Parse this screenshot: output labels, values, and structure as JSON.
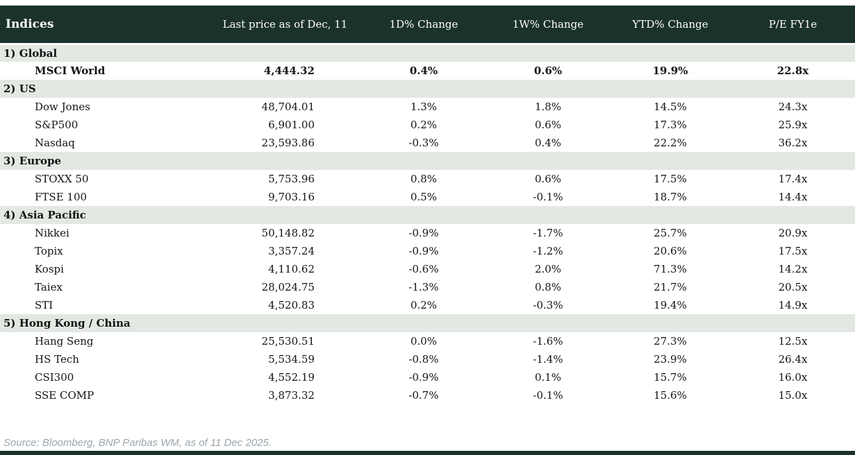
{
  "table": {
    "columns": [
      "Indices",
      "Last price as of Dec, 11",
      "1D% Change",
      "1W% Change",
      "YTD% Change",
      "P/E FY1e"
    ],
    "sections": [
      {
        "label": "1) Global",
        "rows": [
          {
            "name": "MSCI World",
            "price": "4,444.32",
            "d1": "0.4%",
            "d1c": "pos",
            "w1": "0.6%",
            "w1c": "pos",
            "ytd": "19.9%",
            "ytdc": "pos",
            "pe": "22.8x",
            "bold": true
          }
        ]
      },
      {
        "label": "2) US",
        "rows": [
          {
            "name": "Dow Jones",
            "price": "48,704.01",
            "d1": "1.3%",
            "d1c": "pos",
            "w1": "1.8%",
            "w1c": "pos",
            "ytd": "14.5%",
            "ytdc": "pos",
            "pe": "24.3x"
          },
          {
            "name": "S&P500",
            "price": "6,901.00",
            "d1": "0.2%",
            "d1c": "pos",
            "w1": "0.6%",
            "w1c": "pos",
            "ytd": "17.3%",
            "ytdc": "pos",
            "pe": "25.9x"
          },
          {
            "name": "Nasdaq",
            "price": "23,593.86",
            "d1": "-0.3%",
            "d1c": "neg",
            "w1": "0.4%",
            "w1c": "pos",
            "ytd": "22.2%",
            "ytdc": "pos",
            "pe": "36.2x"
          }
        ]
      },
      {
        "label": "3) Europe",
        "rows": [
          {
            "name": "STOXX 50",
            "price": "5,753.96",
            "d1": "0.8%",
            "d1c": "pos",
            "w1": "0.6%",
            "w1c": "pos",
            "ytd": "17.5%",
            "ytdc": "pos",
            "pe": "17.4x"
          },
          {
            "name": "FTSE 100",
            "price": "9,703.16",
            "d1": "0.5%",
            "d1c": "pos",
            "w1": "-0.1%",
            "w1c": "neg",
            "ytd": "18.7%",
            "ytdc": "pos",
            "pe": "14.4x"
          }
        ]
      },
      {
        "label": "4) Asia Pacific",
        "rows": [
          {
            "name": "Nikkei",
            "price": "50,148.82",
            "d1": "-0.9%",
            "d1c": "neg",
            "w1": "-1.7%",
            "w1c": "neg",
            "ytd": "25.7%",
            "ytdc": "pos",
            "pe": "20.9x"
          },
          {
            "name": "Topix",
            "price": "3,357.24",
            "d1": "-0.9%",
            "d1c": "neg",
            "w1": "-1.2%",
            "w1c": "neg",
            "ytd": "20.6%",
            "ytdc": "pos",
            "pe": "17.5x"
          },
          {
            "name": "Kospi",
            "price": "4,110.62",
            "d1": "-0.6%",
            "d1c": "neg",
            "w1": "2.0%",
            "w1c": "pos",
            "ytd": "71.3%",
            "ytdc": "pos",
            "pe": "14.2x"
          },
          {
            "name": "Taiex",
            "price": "28,024.75",
            "d1": "-1.3%",
            "d1c": "neg",
            "w1": "0.8%",
            "w1c": "pos",
            "ytd": "21.7%",
            "ytdc": "pos",
            "pe": "20.5x"
          },
          {
            "name": "STI",
            "price": "4,520.83",
            "d1": "0.2%",
            "d1c": "pos",
            "w1": "-0.3%",
            "w1c": "neg",
            "ytd": "19.4%",
            "ytdc": "pos",
            "pe": "14.9x"
          }
        ]
      },
      {
        "label": "5) Hong Kong / China",
        "rows": [
          {
            "name": "Hang Seng",
            "price": "25,530.51",
            "d1": "0.0%",
            "d1c": "neg",
            "w1": "-1.6%",
            "w1c": "neg",
            "ytd": "27.3%",
            "ytdc": "pos",
            "pe": "12.5x"
          },
          {
            "name": "HS Tech",
            "price": "5,534.59",
            "d1": "-0.8%",
            "d1c": "neg",
            "w1": "-1.4%",
            "w1c": "neg",
            "ytd": "23.9%",
            "ytdc": "pos",
            "pe": "26.4x"
          },
          {
            "name": "CSI300",
            "price": "4,552.19",
            "d1": "-0.9%",
            "d1c": "neg",
            "w1": "0.1%",
            "w1c": "pos",
            "ytd": "15.7%",
            "ytdc": "pos",
            "pe": "16.0x"
          },
          {
            "name": "SSE COMP",
            "price": "3,873.32",
            "d1": "-0.7%",
            "d1c": "neg",
            "w1": "-0.1%",
            "w1c": "neg",
            "ytd": "15.6%",
            "ytdc": "pos",
            "pe": "15.0x"
          }
        ]
      }
    ]
  },
  "footer": {
    "source": "Source: Bloomberg, BNP Paribas WM, as of 11 Dec 2025."
  },
  "colors": {
    "header_bg": "#1b322c",
    "section_bg": "#e3e8e3",
    "positive": "#0d8a3e",
    "negative": "#c9252b",
    "source_text": "#9aa5ad"
  },
  "chart_data": {
    "type": "table",
    "title": "Indices",
    "columns": [
      "Indices",
      "Last price as of Dec, 11",
      "1D% Change",
      "1W% Change",
      "YTD% Change",
      "P/E FY1e"
    ],
    "rows": [
      [
        "1) Global",
        "",
        "",
        "",
        "",
        ""
      ],
      [
        "MSCI World",
        "4,444.32",
        "0.4%",
        "0.6%",
        "19.9%",
        "22.8x"
      ],
      [
        "2) US",
        "",
        "",
        "",
        "",
        ""
      ],
      [
        "Dow Jones",
        "48,704.01",
        "1.3%",
        "1.8%",
        "14.5%",
        "24.3x"
      ],
      [
        "S&P500",
        "6,901.00",
        "0.2%",
        "0.6%",
        "17.3%",
        "25.9x"
      ],
      [
        "Nasdaq",
        "23,593.86",
        "-0.3%",
        "0.4%",
        "22.2%",
        "36.2x"
      ],
      [
        "3) Europe",
        "",
        "",
        "",
        "",
        ""
      ],
      [
        "STOXX 50",
        "5,753.96",
        "0.8%",
        "0.6%",
        "17.5%",
        "17.4x"
      ],
      [
        "FTSE 100",
        "9,703.16",
        "0.5%",
        "-0.1%",
        "18.7%",
        "14.4x"
      ],
      [
        "4) Asia Pacific",
        "",
        "",
        "",
        "",
        ""
      ],
      [
        "Nikkei",
        "50,148.82",
        "-0.9%",
        "-1.7%",
        "25.7%",
        "20.9x"
      ],
      [
        "Topix",
        "3,357.24",
        "-0.9%",
        "-1.2%",
        "20.6%",
        "17.5x"
      ],
      [
        "Kospi",
        "4,110.62",
        "-0.6%",
        "2.0%",
        "71.3%",
        "14.2x"
      ],
      [
        "Taiex",
        "28,024.75",
        "-1.3%",
        "0.8%",
        "21.7%",
        "20.5x"
      ],
      [
        "STI",
        "4,520.83",
        "0.2%",
        "-0.3%",
        "19.4%",
        "14.9x"
      ],
      [
        "5) Hong Kong / China",
        "",
        "",
        "",
        "",
        ""
      ],
      [
        "Hang Seng",
        "25,530.51",
        "0.0%",
        "-1.6%",
        "27.3%",
        "12.5x"
      ],
      [
        "HS Tech",
        "5,534.59",
        "-0.8%",
        "-1.4%",
        "23.9%",
        "26.4x"
      ],
      [
        "CSI300",
        "4,552.19",
        "-0.9%",
        "0.1%",
        "15.7%",
        "16.0x"
      ],
      [
        "SSE COMP",
        "3,873.32",
        "-0.7%",
        "-0.1%",
        "15.6%",
        "15.0x"
      ]
    ]
  }
}
